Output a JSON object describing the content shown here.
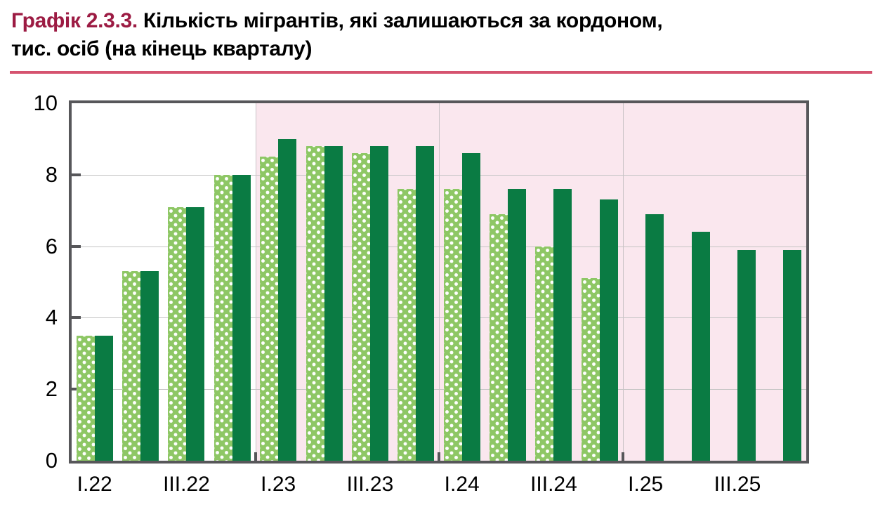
{
  "header": {
    "figure_label": "Графік 2.3.3.",
    "title_rest_line1": "Кількість мігрантів, які залишаються за кордоном,",
    "title_line2": "тис. осіб (на кінець кварталу)"
  },
  "colors": {
    "figure_label": "#9c1b43",
    "title_rule": "#d5536f",
    "bar_solid": "#0a7b43",
    "bar_dotted_base": "#8ec765",
    "bar_dotted_dots": "#ffffff",
    "highlight_background": "#fae7ee",
    "plot_border": "#57575a",
    "gridline": "#c4c4c4",
    "text": "#000000"
  },
  "chart_data": {
    "type": "bar",
    "title": "Кількість мігрантів, які залишаються за кордоном, тис. осіб (на кінець кварталу)",
    "categories": [
      "I.22",
      "II.22",
      "III.22",
      "IV.22",
      "I.23",
      "II.23",
      "III.23",
      "IV.23",
      "I.24",
      "II.24",
      "III.24",
      "IV.24",
      "I.25",
      "II.25",
      "III.25",
      "IV.25"
    ],
    "x_tick_labels": [
      "I.22",
      "III.22",
      "I.23",
      "III.23",
      "I.24",
      "III.24",
      "I.25",
      "III.25"
    ],
    "series": [
      {
        "name": "dotted_light_green",
        "values": [
          3.5,
          5.3,
          7.1,
          8.0,
          8.5,
          8.8,
          8.6,
          7.6,
          7.6,
          6.9,
          6.0,
          5.1,
          null,
          null,
          null,
          null
        ]
      },
      {
        "name": "solid_dark_green",
        "values": [
          3.5,
          5.3,
          7.1,
          8.0,
          9.0,
          8.8,
          8.8,
          8.8,
          8.6,
          7.6,
          7.6,
          7.3,
          6.9,
          6.4,
          5.9,
          5.9
        ]
      }
    ],
    "ylim": [
      0,
      10
    ],
    "yticks": [
      0,
      2,
      4,
      6,
      8,
      10
    ],
    "grid": true,
    "legend": "none",
    "highlight_region": {
      "start_category": "I.23",
      "end": "right_edge"
    },
    "vertical_gridline_categories": [
      "I.23",
      "I.24",
      "I.25"
    ]
  }
}
